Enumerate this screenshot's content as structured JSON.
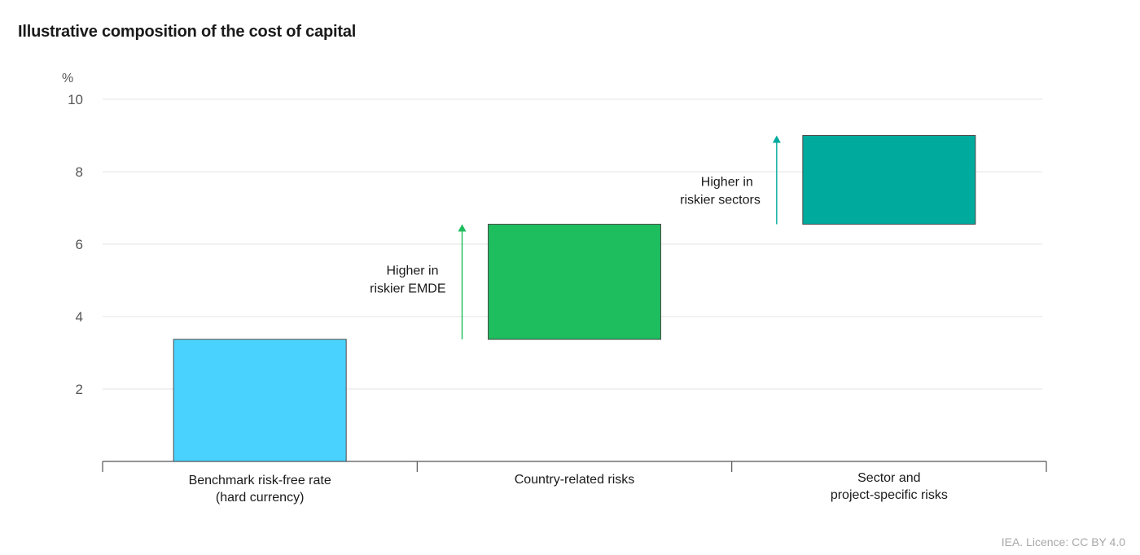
{
  "title": "Illustrative composition of the cost of capital",
  "footer": "IEA. Licence: CC BY 4.0",
  "chart_data": {
    "type": "bar",
    "subtype": "waterfall",
    "unit": "%",
    "ylim": [
      0,
      10
    ],
    "yticks": [
      2,
      4,
      6,
      8,
      10
    ],
    "grid": true,
    "categories": [
      [
        "Benchmark risk-free rate",
        "(hard currency)"
      ],
      [
        "Country-related risks"
      ],
      [
        "Sector and",
        "project-specific risks"
      ]
    ],
    "bars": [
      {
        "base": 0,
        "top": 3.37,
        "color": "#4ad2ff"
      },
      {
        "base": 3.37,
        "top": 6.55,
        "color": "#1ebd5e"
      },
      {
        "base": 6.55,
        "top": 9.0,
        "color": "#00ab9e"
      }
    ],
    "annotations": [
      {
        "category": 1,
        "lines": [
          "Higher in",
          "riskier EMDE"
        ],
        "arrow_from": 3.37,
        "arrow_to": 6.55,
        "color": "#1ebd5e"
      },
      {
        "category": 2,
        "lines": [
          "Higher in",
          "riskier sectors"
        ],
        "arrow_from": 6.55,
        "arrow_to": 9.0,
        "color": "#00ab9e"
      }
    ]
  }
}
